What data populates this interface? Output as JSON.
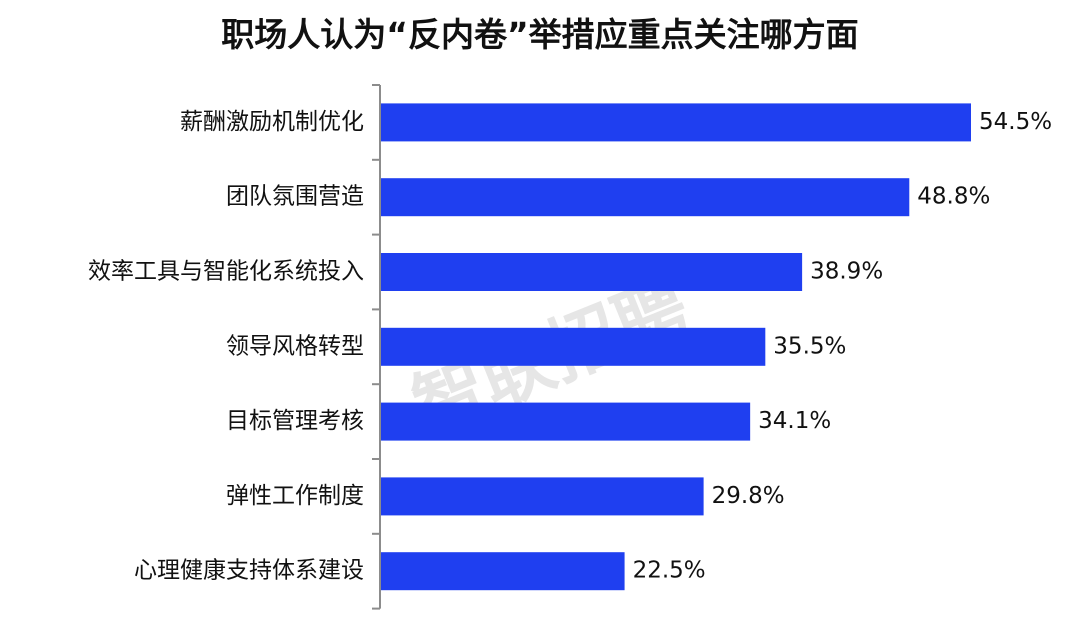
{
  "chart_data": {
    "type": "bar",
    "orientation": "horizontal",
    "title": "职场人认为“反内卷”举措应重点关注哪方面",
    "categories": [
      "薪酬激励机制优化",
      "团队氛围营造",
      "效率工具与智能化系统投入",
      "领导风格转型",
      "目标管理考核",
      "弹性工作制度",
      "心理健康支持体系建设"
    ],
    "values": [
      54.5,
      48.8,
      38.9,
      35.5,
      34.1,
      29.8,
      22.5
    ],
    "value_labels": [
      "54.5%",
      "48.8%",
      "38.9%",
      "35.5%",
      "34.1%",
      "29.8%",
      "22.5%"
    ],
    "xlabel": "",
    "ylabel": "",
    "xlim": [
      0,
      54.5
    ],
    "grid": false,
    "legend": "none",
    "bar_color": "#1f3ff0",
    "watermark": "智联招聘"
  }
}
